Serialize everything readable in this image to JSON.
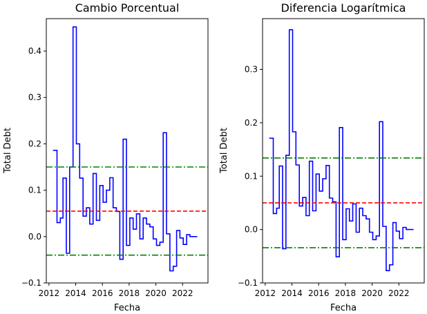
{
  "figure": {
    "background": "#ffffff"
  },
  "chart_data": [
    {
      "type": "line",
      "title": "Cambio Porcentual",
      "xlabel": "Fecha",
      "ylabel": "Total Debt",
      "xlim": [
        2011.8,
        2023.9
      ],
      "ylim": [
        -0.1,
        0.47
      ],
      "x_ticks": [
        2012,
        2014,
        2016,
        2018,
        2020,
        2022
      ],
      "x_tick_labels": [
        "2012",
        "2014",
        "2016",
        "2018",
        "2020",
        "2022"
      ],
      "y_ticks": [
        -0.1,
        0.0,
        0.1,
        0.2,
        0.3,
        0.4
      ],
      "y_tick_labels": [
        "−0.1",
        "0.0",
        "0.1",
        "0.2",
        "0.3",
        "0.4"
      ],
      "grid": false,
      "series": [
        {
          "style": "step",
          "color": "#0000ff",
          "points": [
            [
              2012.3,
              0.186
            ],
            [
              2012.6,
              0.03
            ],
            [
              2012.85,
              0.04
            ],
            [
              2013.05,
              0.126
            ],
            [
              2013.3,
              -0.036
            ],
            [
              2013.55,
              0.15
            ],
            [
              2013.8,
              0.452
            ],
            [
              2014.05,
              0.2
            ],
            [
              2014.3,
              0.126
            ],
            [
              2014.55,
              0.044
            ],
            [
              2014.8,
              0.062
            ],
            [
              2015.05,
              0.027
            ],
            [
              2015.3,
              0.136
            ],
            [
              2015.55,
              0.035
            ],
            [
              2015.8,
              0.11
            ],
            [
              2016.05,
              0.074
            ],
            [
              2016.3,
              0.1
            ],
            [
              2016.55,
              0.127
            ],
            [
              2016.8,
              0.062
            ],
            [
              2017.05,
              0.054
            ],
            [
              2017.3,
              -0.049
            ],
            [
              2017.55,
              0.21
            ],
            [
              2017.8,
              -0.019
            ],
            [
              2018.05,
              0.04
            ],
            [
              2018.3,
              0.016
            ],
            [
              2018.55,
              0.049
            ],
            [
              2018.8,
              -0.005
            ],
            [
              2019.05,
              0.04
            ],
            [
              2019.3,
              0.027
            ],
            [
              2019.55,
              0.021
            ],
            [
              2019.8,
              -0.005
            ],
            [
              2020.05,
              -0.019
            ],
            [
              2020.3,
              -0.012
            ],
            [
              2020.55,
              0.224
            ],
            [
              2020.8,
              0.006
            ],
            [
              2021.05,
              -0.074
            ],
            [
              2021.3,
              -0.064
            ],
            [
              2021.55,
              0.013
            ],
            [
              2021.8,
              -0.003
            ],
            [
              2022.05,
              -0.017
            ],
            [
              2022.3,
              0.004
            ],
            [
              2022.55,
              0.0
            ],
            [
              2023.1,
              0.0
            ]
          ]
        }
      ],
      "hlines": [
        {
          "y": 0.055,
          "color": "#ff0000",
          "style": "dashed"
        },
        {
          "y": 0.15,
          "color": "#008000",
          "style": "dashdot"
        },
        {
          "y": -0.04,
          "color": "#008000",
          "style": "dashdot"
        }
      ]
    },
    {
      "type": "line",
      "title": "Diferencia Logarítmica",
      "xlabel": "Fecha",
      "ylabel": "Total Debt",
      "xlim": [
        2011.8,
        2023.9
      ],
      "ylim": [
        -0.1,
        0.395
      ],
      "x_ticks": [
        2012,
        2014,
        2016,
        2018,
        2020,
        2022
      ],
      "x_tick_labels": [
        "2012",
        "2014",
        "2016",
        "2018",
        "2020",
        "2022"
      ],
      "y_ticks": [
        -0.1,
        0.0,
        0.1,
        0.2,
        0.3
      ],
      "y_tick_labels": [
        "−0.1",
        "0.0",
        "0.1",
        "0.2",
        "0.3"
      ],
      "grid": false,
      "series": [
        {
          "style": "step",
          "color": "#0000ff",
          "points": [
            [
              2012.3,
              0.171
            ],
            [
              2012.6,
              0.03
            ],
            [
              2012.85,
              0.04
            ],
            [
              2013.05,
              0.119
            ],
            [
              2013.3,
              -0.036
            ],
            [
              2013.55,
              0.139
            ],
            [
              2013.8,
              0.374
            ],
            [
              2014.05,
              0.183
            ],
            [
              2014.3,
              0.121
            ],
            [
              2014.55,
              0.044
            ],
            [
              2014.8,
              0.06
            ],
            [
              2015.05,
              0.026
            ],
            [
              2015.3,
              0.128
            ],
            [
              2015.55,
              0.035
            ],
            [
              2015.8,
              0.104
            ],
            [
              2016.05,
              0.072
            ],
            [
              2016.3,
              0.095
            ],
            [
              2016.55,
              0.12
            ],
            [
              2016.8,
              0.059
            ],
            [
              2017.05,
              0.052
            ],
            [
              2017.3,
              -0.051
            ],
            [
              2017.55,
              0.191
            ],
            [
              2017.8,
              -0.019
            ],
            [
              2018.05,
              0.039
            ],
            [
              2018.3,
              0.016
            ],
            [
              2018.55,
              0.048
            ],
            [
              2018.8,
              -0.005
            ],
            [
              2019.05,
              0.04
            ],
            [
              2019.3,
              0.026
            ],
            [
              2019.55,
              0.02
            ],
            [
              2019.8,
              -0.005
            ],
            [
              2020.05,
              -0.019
            ],
            [
              2020.3,
              -0.012
            ],
            [
              2020.55,
              0.202
            ],
            [
              2020.8,
              0.006
            ],
            [
              2021.05,
              -0.077
            ],
            [
              2021.3,
              -0.066
            ],
            [
              2021.55,
              0.013
            ],
            [
              2021.8,
              -0.003
            ],
            [
              2022.05,
              -0.017
            ],
            [
              2022.3,
              0.004
            ],
            [
              2022.55,
              0.0
            ],
            [
              2023.1,
              0.0
            ]
          ]
        }
      ],
      "hlines": [
        {
          "y": 0.05,
          "color": "#ff0000",
          "style": "dashed"
        },
        {
          "y": 0.134,
          "color": "#008000",
          "style": "dashdot"
        },
        {
          "y": -0.034,
          "color": "#008000",
          "style": "dashdot"
        }
      ]
    }
  ]
}
